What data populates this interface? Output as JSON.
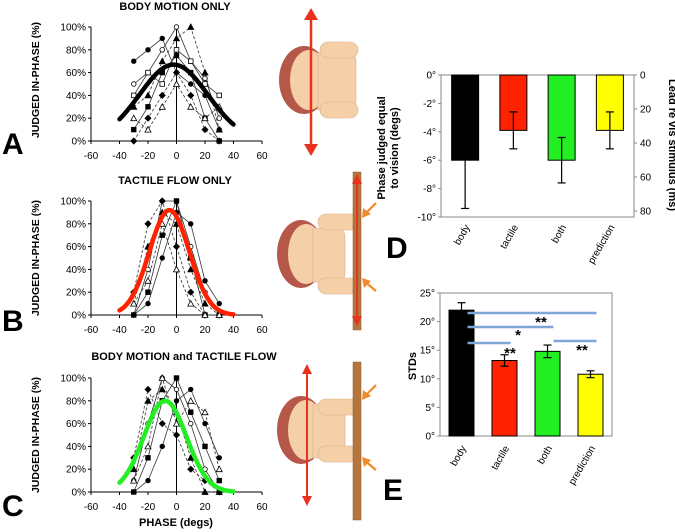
{
  "figure": {
    "panels": {
      "A": "A",
      "B": "B",
      "C": "C",
      "D": "D",
      "E": "E"
    },
    "colors": {
      "body": "#000000",
      "tactile": "#ff2200",
      "both": "#22ee22",
      "prediction": "#ffff00",
      "arrow": "#e8321e",
      "flow_arrow": "#f08a2a",
      "bar_track": "#b5763e",
      "sig_line": "#7ea6d8",
      "skin": "#f4cfa8",
      "hair": "#b5584a"
    },
    "x_axis_label": "PHASE (degs)"
  },
  "chart_data": [
    {
      "type": "line",
      "id": "A",
      "title": "BODY MOTION ONLY",
      "ylabel": "JUDGED IN-PHASE (%)",
      "xlabel": "",
      "xlim": [
        -60,
        60
      ],
      "ylim": [
        0,
        100
      ],
      "xticks": [
        -60,
        -40,
        -20,
        0,
        20,
        40,
        60
      ],
      "yticks": [
        "0%",
        "20%",
        "40%",
        "60%",
        "80%",
        "100%"
      ],
      "fit": {
        "name": "gaussian fit",
        "color": "#000000",
        "amplitude": 67,
        "mean": -2,
        "sd": 24,
        "baseline": 0,
        "range": [
          -40,
          40
        ]
      },
      "subjects": [
        {
          "x": [
            -30,
            -20,
            -10,
            0,
            10,
            20,
            30
          ],
          "y": [
            50,
            60,
            80,
            100,
            70,
            55,
            20
          ]
        },
        {
          "x": [
            -30,
            -20,
            -10,
            0,
            10,
            20,
            30
          ],
          "y": [
            30,
            40,
            70,
            90,
            100,
            60,
            10
          ]
        },
        {
          "x": [
            -30,
            -20,
            -10,
            0,
            10,
            20,
            30
          ],
          "y": [
            10,
            30,
            60,
            75,
            60,
            20,
            0
          ]
        },
        {
          "x": [
            -30,
            -20,
            -10,
            0,
            10,
            20,
            30
          ],
          "y": [
            0,
            20,
            40,
            60,
            40,
            10,
            0
          ]
        },
        {
          "x": [
            -30,
            -20,
            -10,
            0,
            10,
            20,
            30
          ],
          "y": [
            70,
            80,
            90,
            60,
            50,
            40,
            10
          ]
        },
        {
          "x": [
            -30,
            -20,
            -10,
            0,
            10,
            20,
            30
          ],
          "y": [
            20,
            10,
            30,
            50,
            30,
            20,
            30
          ]
        },
        {
          "x": [
            -30,
            -20,
            -10,
            0,
            10,
            20,
            30
          ],
          "y": [
            40,
            60,
            50,
            80,
            70,
            50,
            40
          ]
        }
      ]
    },
    {
      "type": "line",
      "id": "B",
      "title": "TACTILE FLOW ONLY",
      "ylabel": "JUDGED IN-PHASE (%)",
      "xlabel": "",
      "xlim": [
        -60,
        60
      ],
      "ylim": [
        0,
        100
      ],
      "xticks": [
        -60,
        -40,
        -20,
        0,
        20,
        40,
        60
      ],
      "yticks": [
        "0%",
        "20%",
        "40%",
        "60%",
        "80%",
        "100%"
      ],
      "fit": {
        "name": "gaussian fit",
        "color": "#ff2200",
        "amplitude": 92,
        "mean": -5,
        "sd": 14,
        "baseline": 0,
        "range": [
          -40,
          40
        ]
      },
      "subjects": [
        {
          "x": [
            -30,
            -20,
            -10,
            0,
            10,
            20,
            30
          ],
          "y": [
            0,
            40,
            100,
            100,
            60,
            20,
            0
          ]
        },
        {
          "x": [
            -30,
            -20,
            -10,
            0,
            10,
            20,
            30
          ],
          "y": [
            10,
            60,
            90,
            80,
            40,
            10,
            0
          ]
        },
        {
          "x": [
            -30,
            -20,
            -10,
            0,
            10,
            20,
            30
          ],
          "y": [
            0,
            20,
            70,
            100,
            50,
            0,
            0
          ]
        },
        {
          "x": [
            -30,
            -20,
            -10,
            0,
            10,
            20,
            30
          ],
          "y": [
            20,
            80,
            100,
            60,
            20,
            0,
            0
          ]
        },
        {
          "x": [
            -30,
            -20,
            -10,
            0,
            10,
            20,
            30
          ],
          "y": [
            0,
            10,
            50,
            90,
            80,
            30,
            10
          ]
        },
        {
          "x": [
            -30,
            -20,
            -10,
            0,
            10,
            20,
            30
          ],
          "y": [
            10,
            30,
            80,
            40,
            10,
            0,
            0
          ]
        }
      ]
    },
    {
      "type": "line",
      "id": "C",
      "title": "BODY MOTION and TACTILE FLOW",
      "ylabel": "JUDGED IN-PHASE (%)",
      "xlabel": "PHASE (degs)",
      "xlim": [
        -60,
        60
      ],
      "ylim": [
        0,
        100
      ],
      "xticks": [
        -60,
        -40,
        -20,
        0,
        20,
        40,
        60
      ],
      "yticks": [
        "0%",
        "20%",
        "40%",
        "60%",
        "80%",
        "100%"
      ],
      "fit": {
        "name": "gaussian fit",
        "color": "#22ee22",
        "amplitude": 80,
        "mean": -8,
        "sd": 15,
        "baseline": 0,
        "range": [
          -40,
          40
        ]
      },
      "subjects": [
        {
          "x": [
            -30,
            -20,
            -10,
            0,
            10,
            20,
            30
          ],
          "y": [
            10,
            60,
            100,
            90,
            60,
            20,
            0
          ]
        },
        {
          "x": [
            -30,
            -20,
            -10,
            0,
            10,
            20,
            30
          ],
          "y": [
            20,
            80,
            90,
            70,
            30,
            0,
            0
          ]
        },
        {
          "x": [
            -30,
            -20,
            -10,
            0,
            10,
            20,
            30
          ],
          "y": [
            0,
            30,
            80,
            100,
            70,
            40,
            10
          ]
        },
        {
          "x": [
            -30,
            -20,
            -10,
            0,
            10,
            20,
            30
          ],
          "y": [
            30,
            90,
            60,
            50,
            20,
            10,
            0
          ]
        },
        {
          "x": [
            -30,
            -20,
            -10,
            0,
            10,
            20,
            30
          ],
          "y": [
            0,
            10,
            40,
            80,
            90,
            60,
            30
          ]
        },
        {
          "x": [
            -30,
            -20,
            -10,
            0,
            10,
            20,
            30
          ],
          "y": [
            10,
            40,
            100,
            60,
            80,
            70,
            20
          ]
        }
      ]
    },
    {
      "type": "bar",
      "id": "D",
      "categories": [
        "body",
        "tactile",
        "both",
        "prediction"
      ],
      "values": [
        -6.0,
        -3.9,
        -6.0,
        -3.9
      ],
      "errors": [
        3.4,
        1.3,
        1.6,
        1.3
      ],
      "colors": [
        "#000000",
        "#ff2200",
        "#22ee22",
        "#ffff00"
      ],
      "ylabel": "Phase judged equal to vision (degs)",
      "ylabel_line1": "Phase judged equal",
      "ylabel_line2": "to vision (degs)",
      "y2label": "Lead re vis stimulus (ms)",
      "ylim": [
        -10,
        0
      ],
      "yticks": [
        "0°",
        "-2°",
        "-4°",
        "-6°",
        "-8°",
        "-10°"
      ],
      "y2ticks": [
        "0",
        "20",
        "40",
        "60",
        "80"
      ]
    },
    {
      "type": "bar",
      "id": "E",
      "categories": [
        "body",
        "tactile",
        "both",
        "prediction"
      ],
      "values": [
        22.0,
        13.2,
        14.8,
        10.8
      ],
      "errors": [
        1.3,
        1.0,
        1.1,
        0.6
      ],
      "colors": [
        "#000000",
        "#ff2200",
        "#22ee22",
        "#ffff00"
      ],
      "ylabel": "STDs",
      "ylim": [
        0,
        25
      ],
      "yticks": [
        "0°",
        "5°",
        "10°",
        "15°",
        "20°",
        "25°"
      ],
      "significance": [
        "**",
        "*",
        "**",
        "**"
      ]
    }
  ]
}
